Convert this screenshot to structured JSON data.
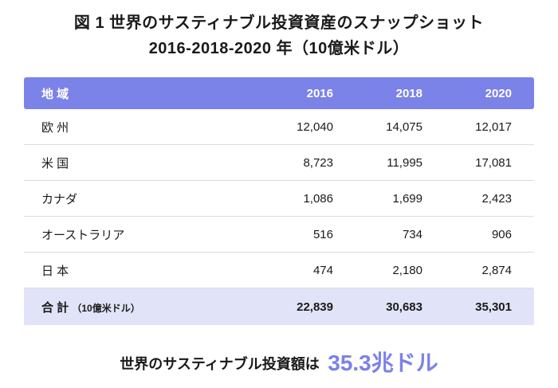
{
  "title": {
    "line1": "図 1 世界のサスティナブル投資資産のスナップショット",
    "line2": "2016-2018-2020 年（10億米ドル）"
  },
  "table": {
    "headers": {
      "region": "地 域",
      "y2016": "2016",
      "y2018": "2018",
      "y2020": "2020"
    },
    "rows": [
      {
        "region": "欧 州",
        "v2016": "12,040",
        "v2018": "14,075",
        "v2020": "12,017"
      },
      {
        "region": "米 国",
        "v2016": "8,723",
        "v2018": "11,995",
        "v2020": "17,081"
      },
      {
        "region": "カナダ",
        "v2016": "1,086",
        "v2018": "1,699",
        "v2020": "2,423"
      },
      {
        "region": "オーストラリア",
        "v2016": "516",
        "v2018": "734",
        "v2020": "906"
      },
      {
        "region": "日 本",
        "v2016": "474",
        "v2018": "2,180",
        "v2020": "2,874"
      }
    ],
    "total": {
      "label": "合 計",
      "unit": "（10億米ドル）",
      "v2016": "22,839",
      "v2018": "30,683",
      "v2020": "35,301"
    }
  },
  "footer": {
    "prefix": "世界のサスティナブル投資額は",
    "highlight": "35.3兆ドル"
  },
  "colors": {
    "header_bg": "#7b82e8",
    "total_bg": "#e1e4f8",
    "accent": "#7b82e8",
    "divider": "#ddddde"
  },
  "chart_data": {
    "type": "table",
    "title": "図1 世界のサスティナブル投資資産のスナップショット 2016-2018-2020年（10億米ドル）",
    "columns": [
      "地域",
      "2016",
      "2018",
      "2020"
    ],
    "rows": [
      [
        "欧州",
        12040,
        14075,
        12017
      ],
      [
        "米国",
        8723,
        11995,
        17081
      ],
      [
        "カナダ",
        1086,
        1699,
        2423
      ],
      [
        "オーストラリア",
        516,
        734,
        906
      ],
      [
        "日本",
        474,
        2180,
        2874
      ],
      [
        "合計（10億米ドル）",
        22839,
        30683,
        35301
      ]
    ],
    "annotation": "世界のサスティナブル投資額は 35.3兆ドル",
    "unit": "10億米ドル"
  }
}
